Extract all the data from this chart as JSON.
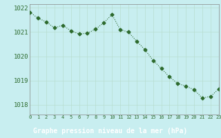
{
  "x": [
    0,
    1,
    2,
    3,
    4,
    5,
    6,
    7,
    8,
    9,
    10,
    11,
    12,
    13,
    14,
    15,
    16,
    17,
    18,
    19,
    20,
    21,
    22,
    23
  ],
  "y": [
    1021.82,
    1021.57,
    1021.42,
    1021.17,
    1021.28,
    1021.05,
    1020.92,
    1020.95,
    1021.12,
    1021.38,
    1021.72,
    1021.1,
    1021.0,
    1020.62,
    1020.28,
    1019.83,
    1019.5,
    1019.15,
    1018.88,
    1018.77,
    1018.62,
    1018.28,
    1018.35,
    1018.65
  ],
  "line_color": "#2d6a2d",
  "marker": "D",
  "marker_size": 2.5,
  "bg_color": "#c8eef0",
  "grid_color": "#aaddcc",
  "xlabel": "Graphe pression niveau de la mer (hPa)",
  "xlabel_color": "#2d6a2d",
  "xlabel_bg": "#336633",
  "tick_color": "#2d6a2d",
  "ylim": [
    1017.6,
    1022.15
  ],
  "xlim": [
    0,
    23
  ],
  "yticks": [
    1018,
    1019,
    1020,
    1021,
    1022
  ],
  "xtick_labels": [
    "0",
    "1",
    "2",
    "3",
    "4",
    "5",
    "6",
    "7",
    "8",
    "9",
    "10",
    "11",
    "12",
    "13",
    "14",
    "15",
    "16",
    "17",
    "18",
    "19",
    "20",
    "21",
    "22",
    "23"
  ]
}
